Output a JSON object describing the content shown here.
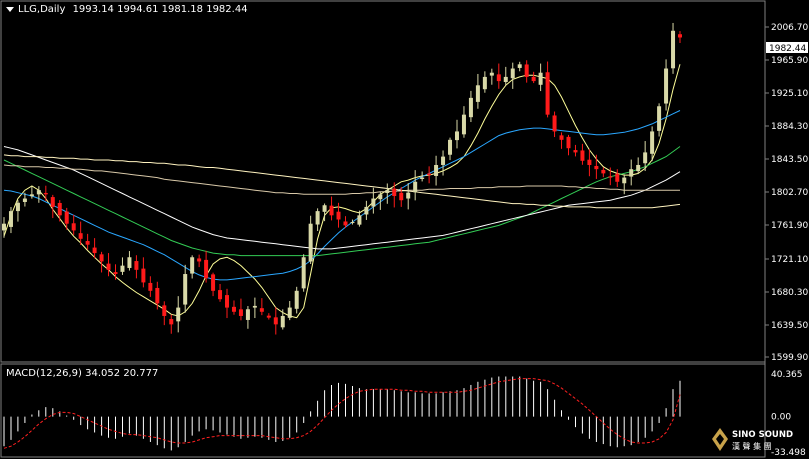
{
  "header": {
    "symbol": "LLG,Daily",
    "open": "1993.14",
    "high": "1994.61",
    "low": "1981.18",
    "close": "1982.44"
  },
  "macd": {
    "label": "MACD(12,26,9)",
    "main": "34.052",
    "signal": "20.777",
    "axis_labels": [
      "40.365",
      "0.00",
      "-33.498"
    ]
  },
  "price_axis": {
    "labels": [
      "2006.70",
      "1965.90",
      "1925.10",
      "1884.30",
      "1843.50",
      "1802.70",
      "1761.90",
      "1721.10",
      "1680.30",
      "1639.50",
      "1599.90"
    ],
    "current_price": "1982.44"
  },
  "logo": {
    "text": "SINO SOUND",
    "subtext": "漢 聲 集 團"
  },
  "colors": {
    "background": "#000000",
    "bull": "#d9d9a8",
    "bear": "#ff1a1a",
    "ma_fast": "#ffff99",
    "ma_mid": "#2aa7ff",
    "ma_green": "#33cc55",
    "ma_white": "#ffffff",
    "ma_tan": "#d8c8a8",
    "macd_hist": "#ffffff",
    "macd_signal": "#ff2020"
  },
  "chart_data": {
    "type": "candlestick",
    "price_range": [
      1599.9,
      2010
    ],
    "ma_series": [
      {
        "color": "#ffff99",
        "values": [
          1745,
          1770,
          1790,
          1800,
          1805,
          1800,
          1790,
          1777,
          1766,
          1755,
          1745,
          1737,
          1728,
          1720,
          1712,
          1705,
          1697,
          1690,
          1684,
          1678,
          1673,
          1668,
          1663,
          1658,
          1652,
          1650,
          1655,
          1665,
          1680,
          1698,
          1712,
          1718,
          1720,
          1716,
          1710,
          1702,
          1694,
          1684,
          1672,
          1660,
          1654,
          1650,
          1648,
          1660,
          1700,
          1742,
          1770,
          1779,
          1780,
          1778,
          1775,
          1773,
          1778,
          1786,
          1795,
          1800,
          1805,
          1810,
          1812,
          1815,
          1817,
          1818,
          1820,
          1823,
          1827,
          1832,
          1840,
          1853,
          1868,
          1885,
          1900,
          1914,
          1925,
          1932,
          1935,
          1937,
          1937,
          1935,
          1933,
          1925,
          1911,
          1894,
          1877,
          1862,
          1848,
          1837,
          1828,
          1823,
          1820,
          1818,
          1818,
          1820,
          1826,
          1836,
          1856,
          1885,
          1920,
          1950
        ]
      },
      {
        "color": "#2aa7ff",
        "values": [
          1800,
          1799,
          1797,
          1795,
          1793,
          1790,
          1786,
          1782,
          1778,
          1774,
          1770,
          1766,
          1762,
          1758,
          1754,
          1750,
          1747,
          1744,
          1741,
          1738,
          1735,
          1731,
          1727,
          1723,
          1718,
          1713,
          1708,
          1703,
          1699,
          1696,
          1694,
          1693,
          1693,
          1694,
          1695,
          1696,
          1697,
          1698,
          1699,
          1700,
          1701,
          1703,
          1706,
          1710,
          1716,
          1724,
          1733,
          1741,
          1749,
          1756,
          1762,
          1768,
          1774,
          1780,
          1786,
          1792,
          1797,
          1802,
          1807,
          1812,
          1816,
          1820,
          1824,
          1828,
          1832,
          1836,
          1840,
          1845,
          1850,
          1855,
          1860,
          1865,
          1868,
          1870,
          1872,
          1873,
          1874,
          1874,
          1873,
          1872,
          1871,
          1870,
          1869,
          1868,
          1867,
          1866,
          1866,
          1867,
          1868,
          1869,
          1871,
          1873,
          1876,
          1879,
          1883,
          1887,
          1891,
          1895
        ]
      },
      {
        "color": "#33cc55",
        "values": [
          1836,
          1832,
          1828,
          1824,
          1820,
          1816,
          1812,
          1808,
          1804,
          1800,
          1796,
          1792,
          1788,
          1784,
          1780,
          1776,
          1772,
          1768,
          1764,
          1760,
          1756,
          1752,
          1748,
          1744,
          1740,
          1737,
          1734,
          1731,
          1729,
          1727,
          1725,
          1724,
          1723,
          1723,
          1722,
          1722,
          1722,
          1722,
          1722,
          1722,
          1722,
          1722,
          1722,
          1722,
          1722,
          1722,
          1723,
          1724,
          1725,
          1726,
          1727,
          1728,
          1729,
          1730,
          1731,
          1732,
          1733,
          1734,
          1735,
          1736,
          1737,
          1738,
          1740,
          1742,
          1744,
          1746,
          1748,
          1750,
          1752,
          1754,
          1756,
          1758,
          1761,
          1764,
          1767,
          1770,
          1774,
          1778,
          1782,
          1786,
          1790,
          1794,
          1798,
          1802,
          1806,
          1810,
          1813,
          1816,
          1818,
          1820,
          1822,
          1825,
          1828,
          1832,
          1836,
          1840,
          1846,
          1852
        ]
      },
      {
        "color": "#ffffff",
        "values": [
          1852,
          1850,
          1848,
          1845,
          1842,
          1839,
          1836,
          1833,
          1830,
          1827,
          1824,
          1820,
          1816,
          1812,
          1808,
          1804,
          1800,
          1796,
          1792,
          1788,
          1784,
          1780,
          1776,
          1772,
          1768,
          1764,
          1760,
          1756,
          1753,
          1750,
          1747,
          1745,
          1743,
          1742,
          1741,
          1740,
          1739,
          1738,
          1737,
          1736,
          1735,
          1734,
          1733,
          1732,
          1731,
          1730,
          1730,
          1730,
          1731,
          1732,
          1733,
          1734,
          1735,
          1736,
          1737,
          1738,
          1739,
          1740,
          1741,
          1742,
          1743,
          1744,
          1745,
          1746,
          1748,
          1750,
          1752,
          1754,
          1756,
          1758,
          1760,
          1762,
          1764,
          1766,
          1768,
          1770,
          1772,
          1774,
          1776,
          1778,
          1780,
          1782,
          1783,
          1784,
          1785,
          1786,
          1787,
          1788,
          1790,
          1792,
          1794,
          1797,
          1800,
          1804,
          1808,
          1812,
          1817,
          1822
        ]
      },
      {
        "color": "#d8c8a8",
        "values": [
          1830,
          1829,
          1829,
          1828,
          1828,
          1828,
          1827,
          1827,
          1826,
          1826,
          1825,
          1825,
          1824,
          1823,
          1823,
          1822,
          1821,
          1820,
          1819,
          1818,
          1817,
          1816,
          1815,
          1813,
          1812,
          1811,
          1810,
          1809,
          1808,
          1807,
          1806,
          1805,
          1804,
          1803,
          1802,
          1801,
          1800,
          1799,
          1798,
          1797,
          1797,
          1796,
          1796,
          1795,
          1795,
          1795,
          1795,
          1795,
          1795,
          1795,
          1796,
          1796,
          1797,
          1797,
          1798,
          1798,
          1799,
          1799,
          1800,
          1800,
          1800,
          1801,
          1801,
          1801,
          1802,
          1802,
          1802,
          1802,
          1803,
          1803,
          1803,
          1804,
          1804,
          1804,
          1804,
          1805,
          1805,
          1805,
          1805,
          1805,
          1805,
          1804,
          1804,
          1803,
          1803,
          1802,
          1802,
          1801,
          1801,
          1800,
          1800,
          1800,
          1800,
          1800,
          1800,
          1800,
          1800,
          1800
        ]
      },
      {
        "color": "#fff3c0",
        "values": [
          1842,
          1841,
          1841,
          1840,
          1840,
          1840,
          1839,
          1839,
          1838,
          1838,
          1838,
          1837,
          1837,
          1836,
          1836,
          1836,
          1835,
          1835,
          1834,
          1834,
          1833,
          1833,
          1832,
          1832,
          1831,
          1830,
          1830,
          1829,
          1828,
          1827,
          1827,
          1826,
          1825,
          1824,
          1823,
          1822,
          1821,
          1820,
          1819,
          1818,
          1817,
          1816,
          1815,
          1814,
          1813,
          1812,
          1811,
          1810,
          1809,
          1808,
          1807,
          1806,
          1805,
          1804,
          1803,
          1802,
          1801,
          1800,
          1799,
          1798,
          1797,
          1796,
          1795,
          1794,
          1793,
          1792,
          1791,
          1790,
          1789,
          1788,
          1787,
          1786,
          1785,
          1784,
          1784,
          1783,
          1783,
          1782,
          1782,
          1781,
          1781,
          1780,
          1780,
          1780,
          1780,
          1779,
          1779,
          1779,
          1779,
          1779,
          1779,
          1779,
          1779,
          1779,
          1780,
          1781,
          1782,
          1783
        ]
      }
    ],
    "closes": [
      1760,
      1775,
      1785,
      1790,
      1795,
      1800,
      1795,
      1780,
      1770,
      1760,
      1752,
      1742,
      1735,
      1725,
      1715,
      1705,
      1700,
      1710,
      1720,
      1705,
      1690,
      1680,
      1665,
      1650,
      1640,
      1660,
      1700,
      1720,
      1715,
      1695,
      1680,
      1670,
      1660,
      1655,
      1650,
      1658,
      1662,
      1655,
      1648,
      1640,
      1650,
      1660,
      1680,
      1720,
      1760,
      1775,
      1782,
      1770,
      1765,
      1758,
      1762,
      1770,
      1780,
      1790,
      1795,
      1800,
      1793,
      1788,
      1797,
      1810,
      1815,
      1818,
      1830,
      1840,
      1860,
      1870,
      1890,
      1910,
      1925,
      1935,
      1940,
      1930,
      1935,
      1945,
      1950,
      1935,
      1930,
      1940,
      1890,
      1870,
      1860,
      1850,
      1845,
      1835,
      1830,
      1825,
      1820,
      1815,
      1810,
      1815,
      1825,
      1830,
      1845,
      1870,
      1900,
      1945,
      1990,
      1982
    ],
    "macd_range": [
      -33.498,
      40.365
    ],
    "macd_hist": [
      -28,
      -22,
      -14,
      -6,
      2,
      6,
      9,
      8,
      5,
      1,
      -3,
      -8,
      -12,
      -15,
      -18,
      -20,
      -21,
      -19,
      -16,
      -18,
      -21,
      -24,
      -27,
      -30,
      -32,
      -29,
      -24,
      -18,
      -14,
      -12,
      -13,
      -15,
      -17,
      -19,
      -21,
      -20,
      -19,
      -20,
      -22,
      -24,
      -23,
      -20,
      -15,
      -6,
      5,
      15,
      25,
      30,
      32,
      31,
      29,
      27,
      26,
      26,
      26,
      26,
      25,
      24,
      23,
      23,
      22,
      22,
      22,
      23,
      24,
      25,
      27,
      30,
      33,
      35,
      37,
      38,
      38,
      38,
      38,
      36,
      34,
      33,
      26,
      16,
      6,
      -3,
      -10,
      -16,
      -21,
      -24,
      -26,
      -28,
      -29,
      -28,
      -27,
      -24,
      -20,
      -14,
      -6,
      8,
      26,
      34
    ],
    "macd_signal": [
      -30,
      -28,
      -24,
      -19,
      -13,
      -7,
      -2,
      2,
      4,
      4,
      3,
      0,
      -3,
      -6,
      -9,
      -12,
      -14,
      -16,
      -17,
      -17,
      -18,
      -19,
      -20,
      -22,
      -24,
      -25,
      -25,
      -24,
      -22,
      -20,
      -19,
      -18,
      -18,
      -18,
      -18,
      -18,
      -18,
      -18,
      -19,
      -20,
      -21,
      -21,
      -20,
      -18,
      -14,
      -8,
      -1,
      6,
      12,
      17,
      21,
      24,
      25,
      26,
      26,
      26,
      26,
      25,
      25,
      24,
      24,
      23,
      23,
      23,
      23,
      23,
      24,
      25,
      27,
      29,
      31,
      33,
      34,
      35,
      36,
      36,
      36,
      35,
      34,
      31,
      27,
      22,
      17,
      12,
      6,
      0,
      -6,
      -12,
      -17,
      -21,
      -24,
      -25,
      -25,
      -24,
      -21,
      -15,
      -3,
      21
    ]
  }
}
